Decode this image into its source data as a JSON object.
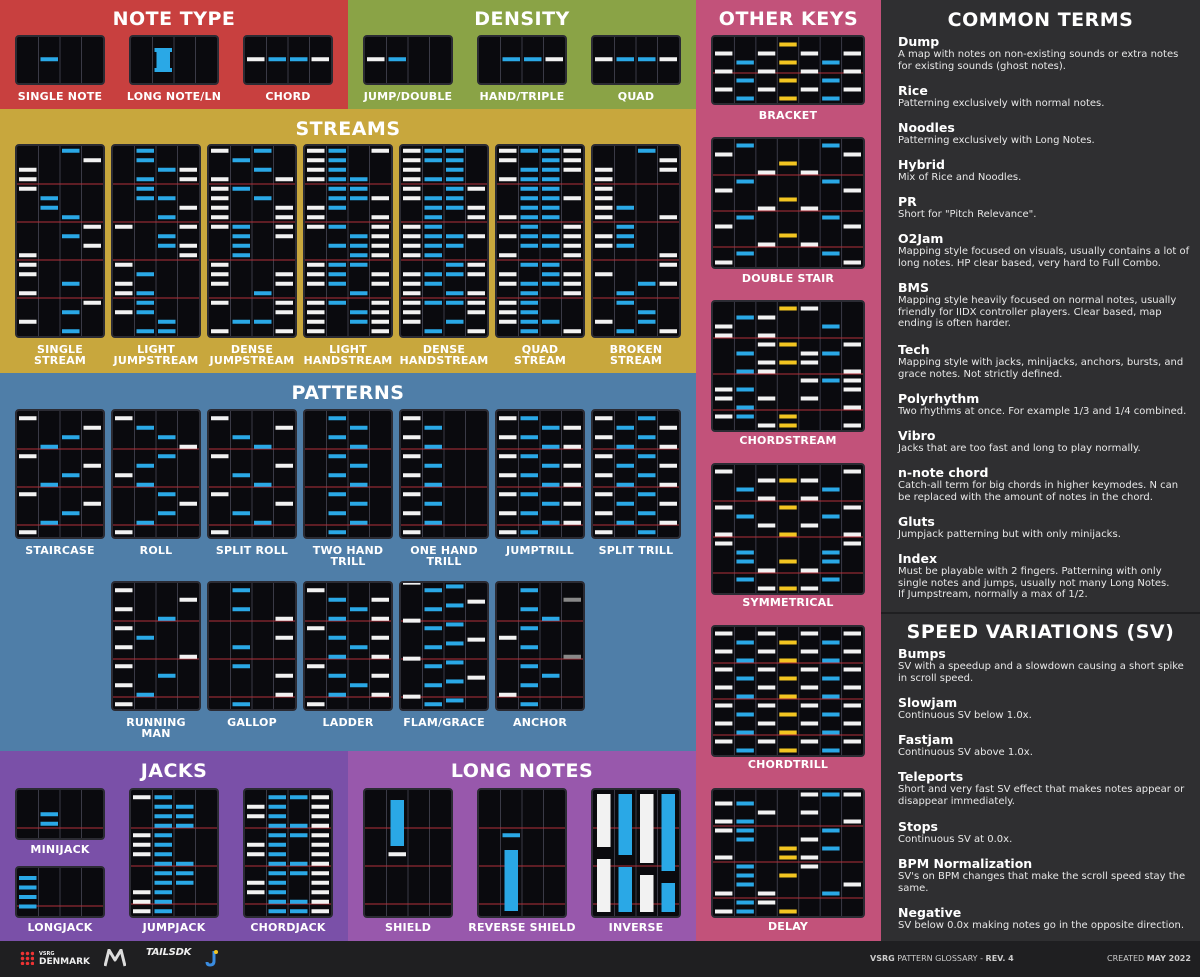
{
  "colors": {
    "note_type_bg": "#c8403f",
    "density_bg": "#8aa346",
    "other_keys_bg": "#c2527a",
    "streams_bg": "#c8a73d",
    "patterns_bg": "#4f7ea8",
    "jacks_bg": "#7a50a8",
    "long_notes_bg": "#9858ac",
    "sidebar_bg": "#2f2f31",
    "note_blue": "#2aa8e6",
    "note_white": "#f2f2f2",
    "note_yellow": "#f2c521",
    "lane_line": "#3a3a46",
    "beat_line": "#b1303b"
  },
  "sections": {
    "note_type": {
      "title": "NOTE TYPE",
      "items": [
        "SINGLE NOTE",
        "LONG NOTE/LN",
        "CHORD"
      ]
    },
    "density": {
      "title": "DENSITY",
      "items": [
        "JUMP/DOUBLE",
        "HAND/TRIPLE",
        "QUAD"
      ]
    },
    "other_keys": {
      "title": "OTHER KEYS",
      "items": [
        "BRACKET",
        "DOUBLE STAIR",
        "CHORDSTREAM",
        "SYMMETRICAL",
        "CHORDTRILL",
        "DELAY"
      ]
    },
    "streams": {
      "title": "STREAMS",
      "items": [
        "SINGLE\nSTREAM",
        "LIGHT\nJUMPSTREAM",
        "DENSE\nJUMPSTREAM",
        "LIGHT\nHANDSTREAM",
        "DENSE\nHANDSTREAM",
        "QUAD\nSTREAM",
        "BROKEN\nSTREAM"
      ]
    },
    "patterns": {
      "title": "PATTERNS",
      "items": [
        "STAIRCASE",
        "ROLL",
        "SPLIT ROLL",
        "TWO HAND\nTRILL",
        "ONE HAND\nTRILL",
        "JUMPTRILL",
        "SPLIT TRILL",
        "RUNNING\nMAN",
        "GALLOP",
        "LADDER",
        "FLAM/GRACE",
        "ANCHOR"
      ]
    },
    "jacks": {
      "title": "JACKS",
      "items": [
        "MINIJACK",
        "LONGJACK",
        "JUMPJACK",
        "CHORDJACK"
      ]
    },
    "long_notes": {
      "title": "LONG NOTES",
      "items": [
        "SHIELD",
        "REVERSE SHIELD",
        "INVERSE"
      ]
    }
  },
  "common_terms": {
    "title": "COMMON TERMS",
    "terms": [
      {
        "term": "Dump",
        "desc": "A map with notes on non-existing sounds or extra notes for existing sounds (ghost notes)."
      },
      {
        "term": "Rice",
        "desc": "Patterning exclusively with normal notes."
      },
      {
        "term": "Noodles",
        "desc": "Patterning exclusively with Long Notes."
      },
      {
        "term": "Hybrid",
        "desc": "Mix of Rice and Noodles."
      },
      {
        "term": "PR",
        "desc": "Short for \"Pitch Relevance\"."
      },
      {
        "term": "O2Jam",
        "desc": "Mapping style focused on visuals, usually contains a lot of long notes. HP clear based, very hard to Full Combo."
      },
      {
        "term": "BMS",
        "desc": "Mapping style heavily focused on normal notes, usually friendly for IIDX controller players. Clear based, map ending is often harder."
      },
      {
        "term": "Tech",
        "desc": "Mapping style with jacks, minijacks, anchors, bursts, and grace notes. Not strictly defined."
      },
      {
        "term": "Polyrhythm",
        "desc": "Two rhythms at once. For example 1/3 and 1/4 combined."
      },
      {
        "term": "Vibro",
        "desc": "Jacks that are too fast and long to play normally."
      },
      {
        "term": "n-note chord",
        "desc": "Catch-all term for big chords in higher keymodes. N can be replaced with the amount of notes in the chord."
      },
      {
        "term": "Gluts",
        "desc": "Jumpjack patterning but with only minijacks."
      },
      {
        "term": "Index",
        "desc": "Must be playable with 2 fingers. Patterning with only single notes and jumps, usually not many Long Notes.\nIf Jumpstream, normally a max of 1/2."
      }
    ]
  },
  "speed_variations": {
    "title": "SPEED VARIATIONS (SV)",
    "terms": [
      {
        "term": "Bumps",
        "desc": "SV with a speedup and a slowdown causing a short spike in scroll speed."
      },
      {
        "term": "Slowjam",
        "desc": "Continuous SV below 1.0x."
      },
      {
        "term": "Fastjam",
        "desc": "Continuous SV above 1.0x."
      },
      {
        "term": "Teleports",
        "desc": "Short and very fast SV effect that makes notes appear or disappear immediately."
      },
      {
        "term": "Stops",
        "desc": "Continuous SV at 0.0x."
      },
      {
        "term": "BPM Normalization",
        "desc": "SV's on BPM changes that make the scroll speed stay the same."
      },
      {
        "term": "Negative",
        "desc": "SV below 0.0x making notes go in the opposite direction."
      }
    ]
  },
  "footer": {
    "logo1_small": "VSRG",
    "logo1": "DENMARK",
    "logo3": "TAILSDK",
    "glossary_prefix": "VSRG",
    "glossary_name": "PATTERN GLOSSARY",
    "glossary_rev": "REV. 4",
    "created_label": "CREATED",
    "created_date": "MAY 2022"
  }
}
